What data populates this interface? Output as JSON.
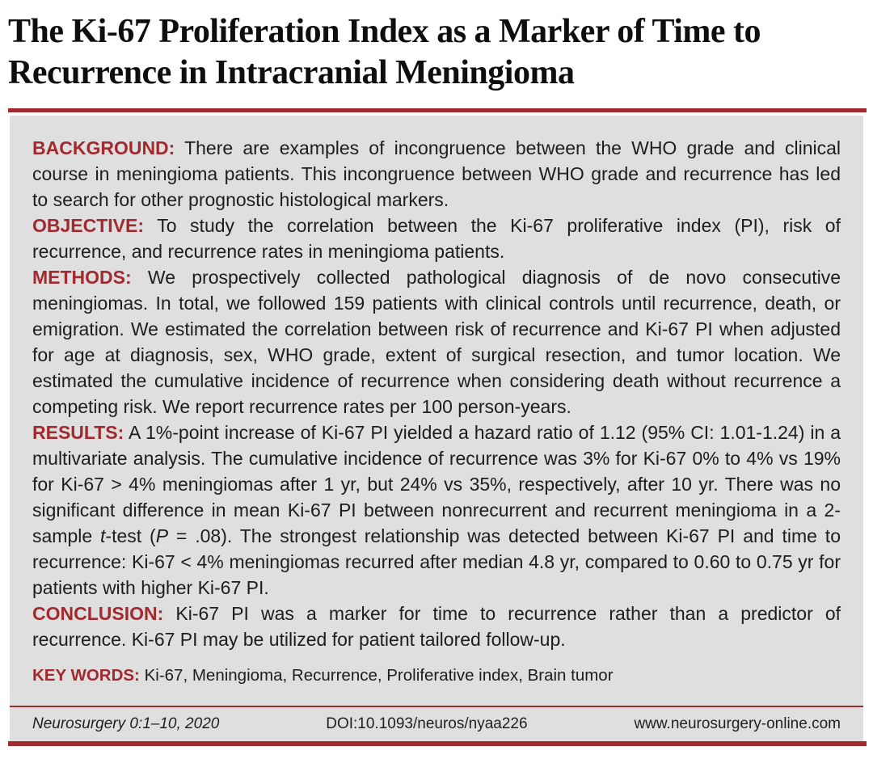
{
  "colors": {
    "accent": "#a22a2e",
    "box_bg": "#dfdfdf",
    "text": "#1d1d1b"
  },
  "title": {
    "lines": [
      "The Ki-67 Proliferation Index as a Marker of Time to",
      "Recurrence in Intracranial Meningioma"
    ]
  },
  "abstract": {
    "sections": [
      {
        "label": "BACKGROUND:",
        "segments": [
          {
            "t": "There are examples of incongruence between the WHO grade and clinical course in meningioma patients. This incongruence between WHO grade and recurrence has led to search for other prognostic histological markers."
          }
        ]
      },
      {
        "label": "OBJECTIVE:",
        "segments": [
          {
            "t": "To study the correlation between the Ki-67 proliferative index (PI), risk of recurrence, and recurrence rates in meningioma patients."
          }
        ]
      },
      {
        "label": "METHODS:",
        "segments": [
          {
            "t": "We prospectively collected pathological diagnosis of de novo consecutive meningiomas. In total, we followed 159 patients with clinical controls until recurrence, death, or emigration. We estimated the correlation between risk of recurrence and Ki-67 PI when adjusted for age at diagnosis, sex, WHO grade, extent of surgical resection, and tumor location. We estimated the cumulative incidence of recurrence when considering death without recurrence a competing risk. We report recurrence rates per 100 person-years."
          }
        ]
      },
      {
        "label": "RESULTS:",
        "segments": [
          {
            "t": "A 1%-point increase of Ki-67 PI yielded a hazard ratio of 1.12 (95% CI: 1.01-1.24) in a multivariate analysis. The cumulative incidence of recurrence was 3% for Ki-67 0% to 4% vs 19% for Ki-67 > 4% meningiomas after 1 yr, but 24% vs 35%, respectively, after 10 yr. There was no significant difference in mean Ki-67 PI between nonrecurrent and recurrent meningioma in a 2-sample "
          },
          {
            "t": "t",
            "italic": true
          },
          {
            "t": "-test ("
          },
          {
            "t": "P",
            "italic": true
          },
          {
            "t": " = .08). The strongest relationship was detected between Ki-67 PI and time to recurrence: Ki-67 < 4% meningiomas recurred after median 4.8 yr, compared to 0.60 to 0.75 yr for patients with higher Ki-67 PI."
          }
        ]
      },
      {
        "label": "CONCLUSION:",
        "segments": [
          {
            "t": "Ki-67 PI was a marker for time to recurrence rather than a predictor of recurrence. Ki-67 PI may be utilized for patient tailored follow-up."
          }
        ]
      }
    ],
    "keywords_label": "KEY WORDS:",
    "keywords": "Ki-67, Meningioma, Recurrence, Proliferative index, Brain tumor"
  },
  "footer": {
    "journal": "Neurosurgery 0:1–10, 2020",
    "doi": "DOI:10.1093/neuros/nyaa226",
    "website": "www.neurosurgery-online.com"
  }
}
